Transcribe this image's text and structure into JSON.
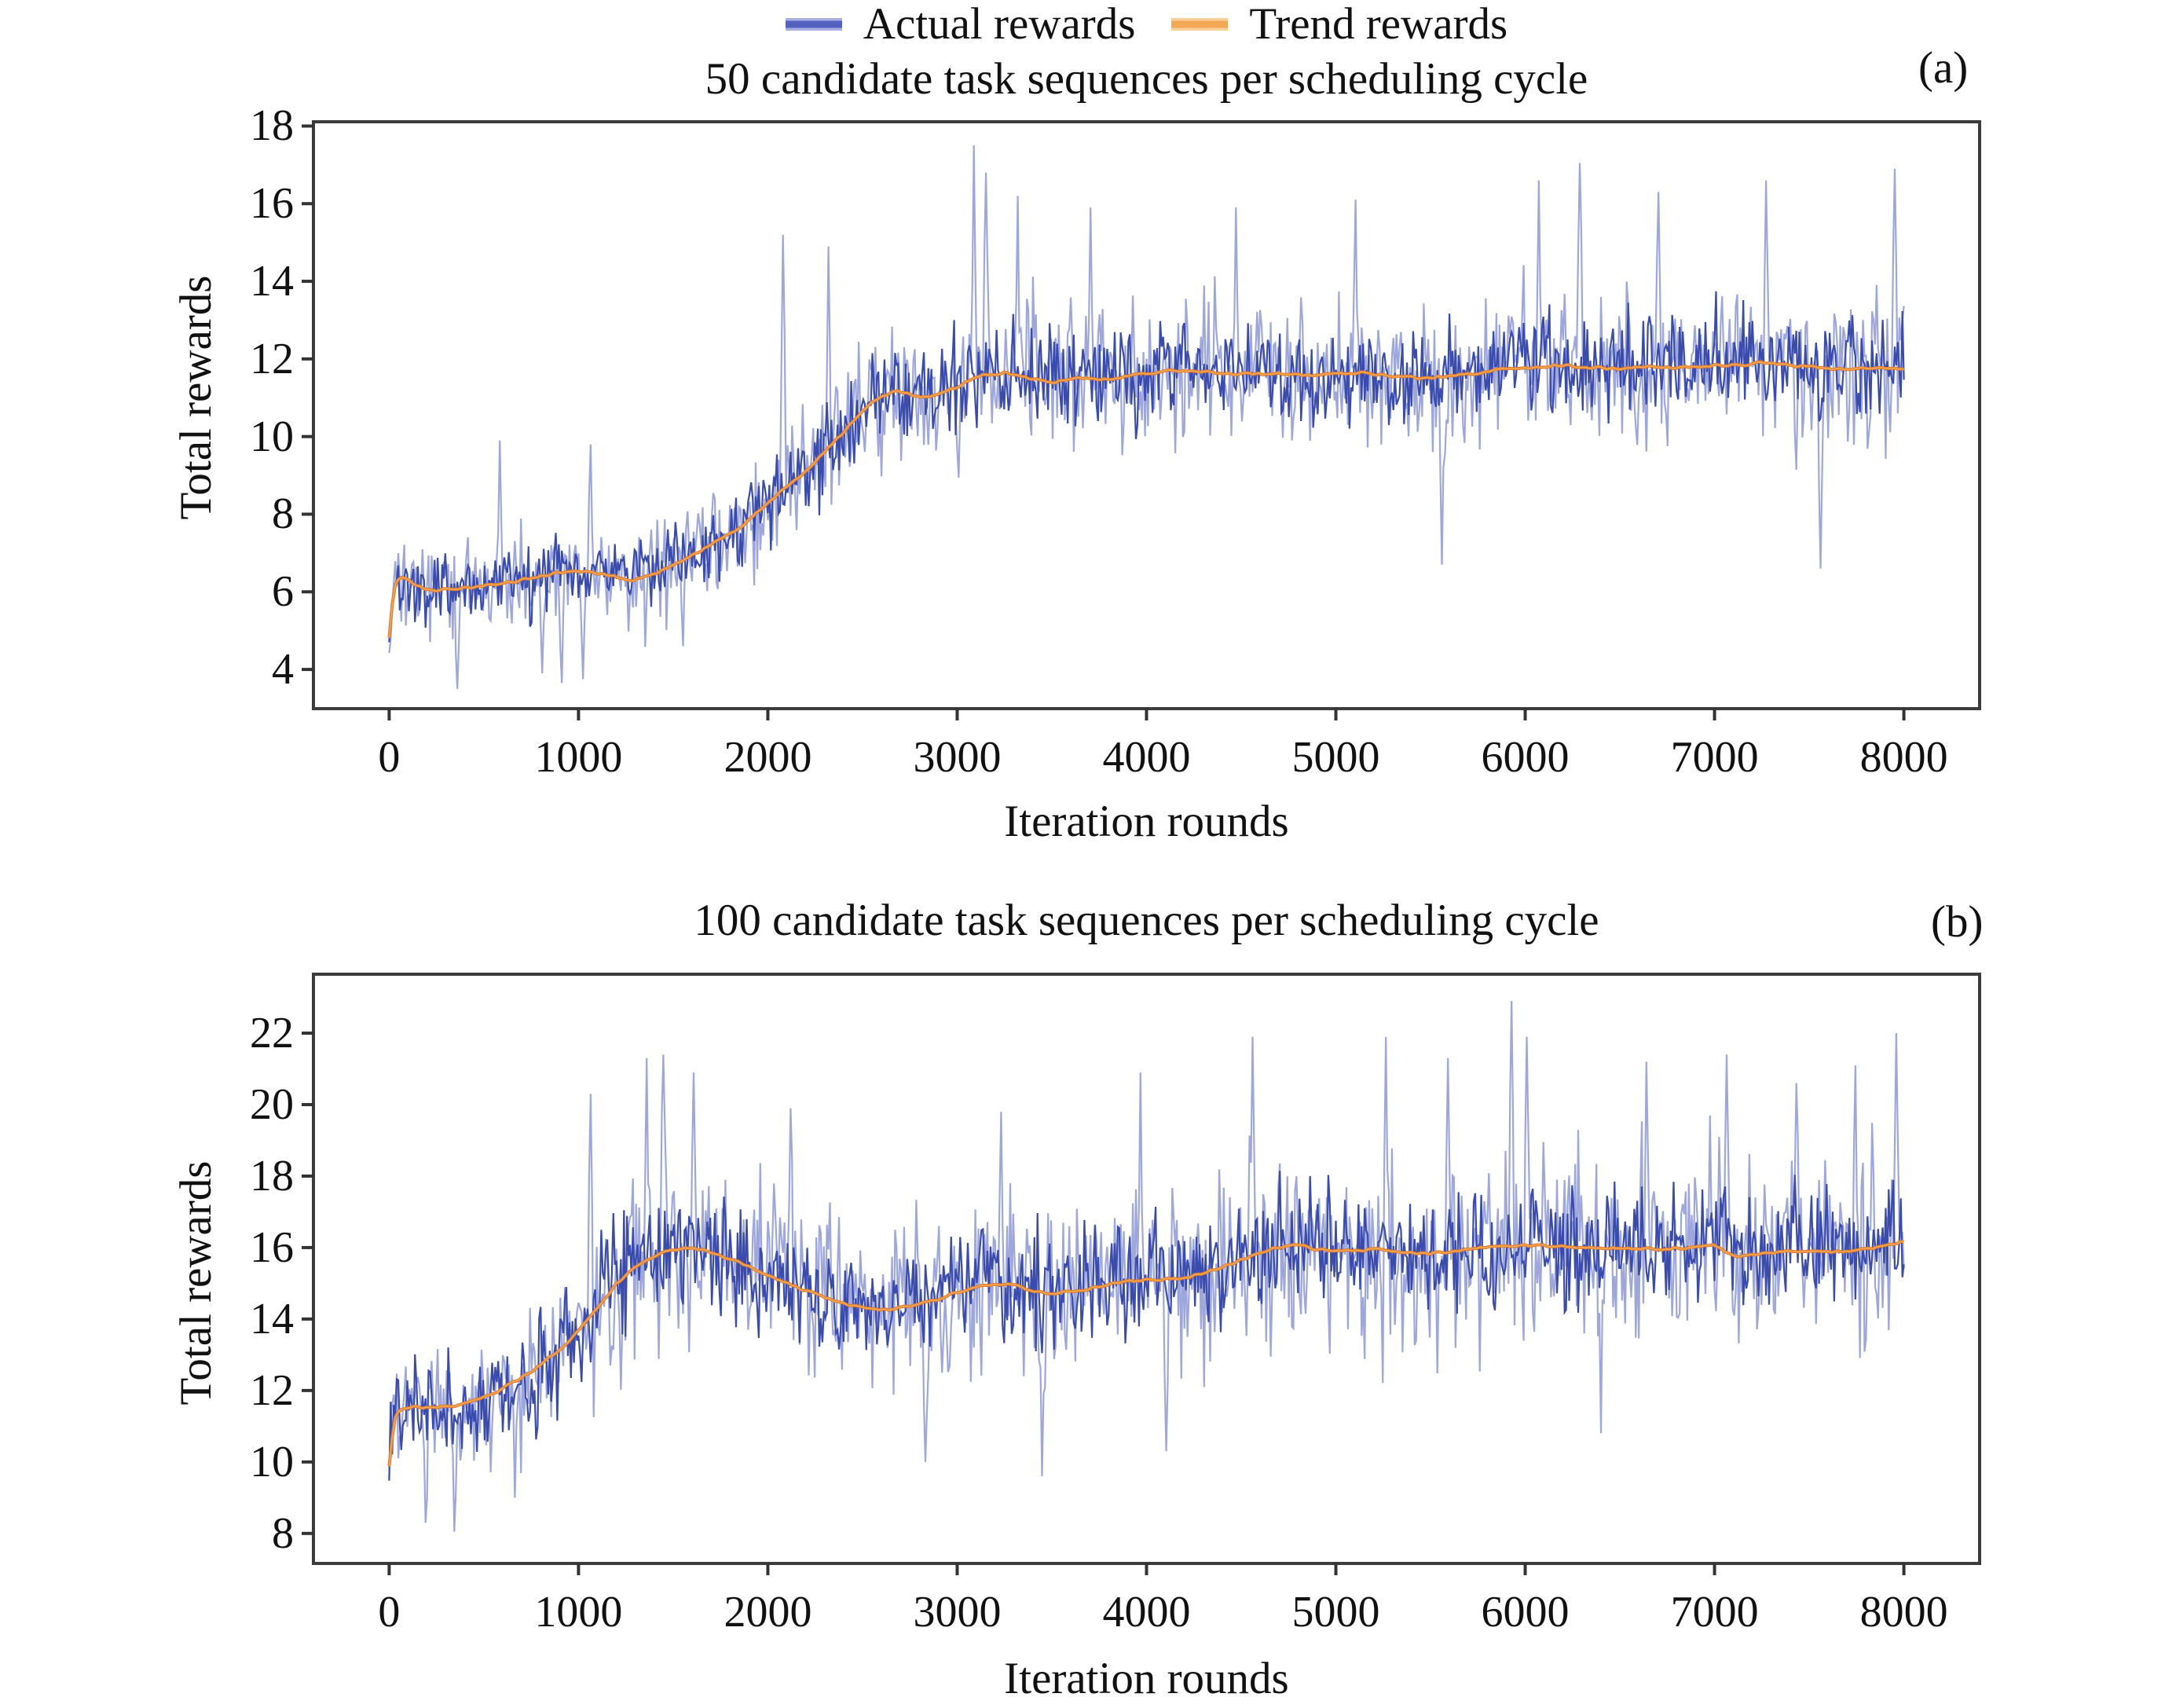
{
  "figure": {
    "background": "#ffffff",
    "text_color": "#111111",
    "axis_color": "#3c3c3c",
    "tick_color": "#333333"
  },
  "legend": {
    "position": "top-center",
    "items": [
      {
        "label": "Actual rewards",
        "sample_core": "#5361bf",
        "sample_halo": "#a7afe1"
      },
      {
        "label": "Trend rewards",
        "sample_core": "#f3a854",
        "sample_halo": "#f9d09a"
      }
    ]
  },
  "chart_data": [
    {
      "type": "line",
      "panel_label": "(a)",
      "title": "50 candidate task sequences per scheduling cycle",
      "xlabel": "Iteration rounds",
      "ylabel": "Total rewards",
      "xlim": [
        -400,
        8400
      ],
      "ylim": [
        2.99,
        18.11
      ],
      "xticks": [
        0,
        1000,
        2000,
        3000,
        4000,
        5000,
        6000,
        7000,
        8000
      ],
      "yticks": [
        4,
        6,
        8,
        10,
        12,
        14,
        16,
        18
      ],
      "grid": false,
      "series": [
        {
          "name": "Actual rewards",
          "kind": "noisy",
          "color": "#3a4bae",
          "light_color": "#98a2d9",
          "seed": 137,
          "step": 8,
          "core_ratio": 0.7,
          "amplitude_keypoints": [
            [
              0,
              1.8
            ],
            [
              500,
              1.9
            ],
            [
              900,
              2.0
            ],
            [
              1200,
              1.9
            ],
            [
              1500,
              2.1
            ],
            [
              1900,
              2.3
            ],
            [
              2300,
              2.5
            ],
            [
              2700,
              2.7
            ],
            [
              3100,
              2.9
            ],
            [
              3500,
              2.85
            ],
            [
              4000,
              2.8
            ],
            [
              4500,
              2.75
            ],
            [
              5000,
              2.8
            ],
            [
              5500,
              2.85
            ],
            [
              6000,
              2.9
            ],
            [
              6500,
              2.85
            ],
            [
              7000,
              2.85
            ],
            [
              7500,
              2.9
            ],
            [
              8000,
              3.0
            ]
          ],
          "spikes": [
            [
              360,
              3.5
            ],
            [
              580,
              9.9
            ],
            [
              810,
              3.9
            ],
            [
              910,
              3.65
            ],
            [
              1020,
              3.75
            ],
            [
              1060,
              9.8
            ],
            [
              1550,
              4.6
            ],
            [
              2080,
              15.2
            ],
            [
              2320,
              14.9
            ],
            [
              3090,
              17.5
            ],
            [
              3150,
              16.8
            ],
            [
              3320,
              16.2
            ],
            [
              3700,
              15.9
            ],
            [
              4470,
              15.9
            ],
            [
              5100,
              16.1
            ],
            [
              5560,
              6.7
            ],
            [
              6070,
              16.6
            ],
            [
              6290,
              17.05
            ],
            [
              6700,
              16.3
            ],
            [
              7270,
              16.6
            ],
            [
              7560,
              6.6
            ],
            [
              7950,
              16.9
            ]
          ]
        },
        {
          "name": "Trend rewards",
          "kind": "trend",
          "color": "#e07b30",
          "highlight": "#f4a94e",
          "step": 16,
          "jitter": 0.05,
          "points": [
            [
              0,
              4.85
            ],
            [
              25,
              6.3
            ],
            [
              60,
              6.4
            ],
            [
              120,
              6.25
            ],
            [
              200,
              6.05
            ],
            [
              300,
              6.05
            ],
            [
              420,
              6.1
            ],
            [
              550,
              6.2
            ],
            [
              700,
              6.3
            ],
            [
              850,
              6.45
            ],
            [
              1000,
              6.55
            ],
            [
              1150,
              6.45
            ],
            [
              1280,
              6.3
            ],
            [
              1400,
              6.45
            ],
            [
              1550,
              6.8
            ],
            [
              1700,
              7.2
            ],
            [
              1850,
              7.65
            ],
            [
              2000,
              8.3
            ],
            [
              2150,
              8.9
            ],
            [
              2300,
              9.6
            ],
            [
              2450,
              10.4
            ],
            [
              2570,
              10.95
            ],
            [
              2680,
              11.2
            ],
            [
              2800,
              11.0
            ],
            [
              2950,
              11.15
            ],
            [
              3100,
              11.55
            ],
            [
              3250,
              11.65
            ],
            [
              3400,
              11.5
            ],
            [
              3500,
              11.38
            ],
            [
              3650,
              11.5
            ],
            [
              3800,
              11.48
            ],
            [
              3950,
              11.6
            ],
            [
              4100,
              11.67
            ],
            [
              4250,
              11.72
            ],
            [
              4400,
              11.6
            ],
            [
              4550,
              11.63
            ],
            [
              4700,
              11.62
            ],
            [
              4850,
              11.57
            ],
            [
              5000,
              11.62
            ],
            [
              5150,
              11.63
            ],
            [
              5300,
              11.55
            ],
            [
              5450,
              11.5
            ],
            [
              5600,
              11.55
            ],
            [
              5750,
              11.65
            ],
            [
              5900,
              11.75
            ],
            [
              6050,
              11.8
            ],
            [
              6200,
              11.82
            ],
            [
              6350,
              11.78
            ],
            [
              6500,
              11.75
            ],
            [
              6650,
              11.8
            ],
            [
              6800,
              11.78
            ],
            [
              6950,
              11.82
            ],
            [
              7100,
              11.85
            ],
            [
              7250,
              11.9
            ],
            [
              7400,
              11.82
            ],
            [
              7550,
              11.78
            ],
            [
              7700,
              11.75
            ],
            [
              7850,
              11.77
            ],
            [
              8000,
              11.75
            ]
          ]
        }
      ]
    },
    {
      "type": "line",
      "panel_label": "(b)",
      "title": "100 candidate task sequences per scheduling cycle",
      "xlabel": "Iteration rounds",
      "ylabel": "Total rewards",
      "xlim": [
        -400,
        8400
      ],
      "ylim": [
        7.16,
        23.65
      ],
      "xticks": [
        0,
        1000,
        2000,
        3000,
        4000,
        5000,
        6000,
        7000,
        8000
      ],
      "yticks": [
        8,
        10,
        12,
        14,
        16,
        18,
        20,
        22
      ],
      "grid": false,
      "series": [
        {
          "name": "Actual rewards",
          "kind": "noisy",
          "color": "#3a4bae",
          "light_color": "#98a2d9",
          "seed": 731,
          "step": 8,
          "core_ratio": 0.66,
          "amplitude_keypoints": [
            [
              0,
              2.7
            ],
            [
              300,
              2.9
            ],
            [
              600,
              3.2
            ],
            [
              900,
              3.6
            ],
            [
              1200,
              3.9
            ],
            [
              1500,
              3.95
            ],
            [
              1800,
              3.8
            ],
            [
              2100,
              3.5
            ],
            [
              2400,
              3.35
            ],
            [
              2700,
              3.3
            ],
            [
              3000,
              3.4
            ],
            [
              3300,
              3.5
            ],
            [
              3600,
              3.55
            ],
            [
              3900,
              3.6
            ],
            [
              4200,
              3.7
            ],
            [
              4500,
              3.85
            ],
            [
              4800,
              3.9
            ],
            [
              5100,
              3.9
            ],
            [
              5400,
              3.95
            ],
            [
              5700,
              4.0
            ],
            [
              6000,
              3.95
            ],
            [
              6300,
              3.9
            ],
            [
              6600,
              3.9
            ],
            [
              6900,
              3.9
            ],
            [
              7200,
              3.95
            ],
            [
              7500,
              4.0
            ],
            [
              7800,
              4.1
            ],
            [
              8000,
              4.3
            ]
          ],
          "spikes": [
            [
              190,
              8.3
            ],
            [
              340,
              8.05
            ],
            [
              660,
              9.0
            ],
            [
              1060,
              20.3
            ],
            [
              1360,
              21.3
            ],
            [
              1450,
              21.4
            ],
            [
              1610,
              20.9
            ],
            [
              2120,
              19.9
            ],
            [
              2830,
              10.0
            ],
            [
              3230,
              19.8
            ],
            [
              3450,
              9.6
            ],
            [
              3970,
              20.9
            ],
            [
              4100,
              10.3
            ],
            [
              4560,
              21.9
            ],
            [
              5260,
              21.9
            ],
            [
              5590,
              21.3
            ],
            [
              5930,
              22.9
            ],
            [
              6010,
              21.9
            ],
            [
              6400,
              10.8
            ],
            [
              6640,
              21.2
            ],
            [
              7060,
              21.4
            ],
            [
              7430,
              20.6
            ],
            [
              7740,
              21.1
            ],
            [
              7960,
              22.0
            ]
          ]
        },
        {
          "name": "Trend rewards",
          "kind": "trend",
          "color": "#e07b30",
          "highlight": "#f4a94e",
          "step": 16,
          "jitter": 0.05,
          "points": [
            [
              0,
              9.9
            ],
            [
              30,
              11.45
            ],
            [
              100,
              11.55
            ],
            [
              200,
              11.5
            ],
            [
              320,
              11.55
            ],
            [
              450,
              11.7
            ],
            [
              580,
              12.0
            ],
            [
              700,
              12.35
            ],
            [
              820,
              12.8
            ],
            [
              950,
              13.4
            ],
            [
              1080,
              14.15
            ],
            [
              1200,
              15.0
            ],
            [
              1320,
              15.55
            ],
            [
              1450,
              15.85
            ],
            [
              1550,
              16.0
            ],
            [
              1650,
              15.95
            ],
            [
              1750,
              15.8
            ],
            [
              1900,
              15.45
            ],
            [
              2050,
              15.1
            ],
            [
              2200,
              14.8
            ],
            [
              2350,
              14.5
            ],
            [
              2500,
              14.32
            ],
            [
              2650,
              14.25
            ],
            [
              2800,
              14.42
            ],
            [
              2950,
              14.65
            ],
            [
              3100,
              14.9
            ],
            [
              3200,
              15.0
            ],
            [
              3320,
              14.92
            ],
            [
              3450,
              14.72
            ],
            [
              3600,
              14.75
            ],
            [
              3750,
              14.92
            ],
            [
              3900,
              15.05
            ],
            [
              4050,
              15.1
            ],
            [
              4200,
              15.15
            ],
            [
              4350,
              15.35
            ],
            [
              4500,
              15.65
            ],
            [
              4650,
              15.95
            ],
            [
              4770,
              16.1
            ],
            [
              4900,
              15.95
            ],
            [
              5050,
              15.9
            ],
            [
              5200,
              15.95
            ],
            [
              5350,
              15.88
            ],
            [
              5500,
              15.82
            ],
            [
              5650,
              15.92
            ],
            [
              5800,
              16.0
            ],
            [
              5950,
              16.08
            ],
            [
              6100,
              16.05
            ],
            [
              6250,
              16.0
            ],
            [
              6400,
              16.0
            ],
            [
              6550,
              15.97
            ],
            [
              6700,
              15.95
            ],
            [
              6850,
              16.0
            ],
            [
              7000,
              16.08
            ],
            [
              7120,
              15.72
            ],
            [
              7250,
              15.85
            ],
            [
              7400,
              15.9
            ],
            [
              7550,
              15.85
            ],
            [
              7700,
              15.9
            ],
            [
              7850,
              15.98
            ],
            [
              8000,
              16.2
            ]
          ]
        }
      ]
    }
  ]
}
